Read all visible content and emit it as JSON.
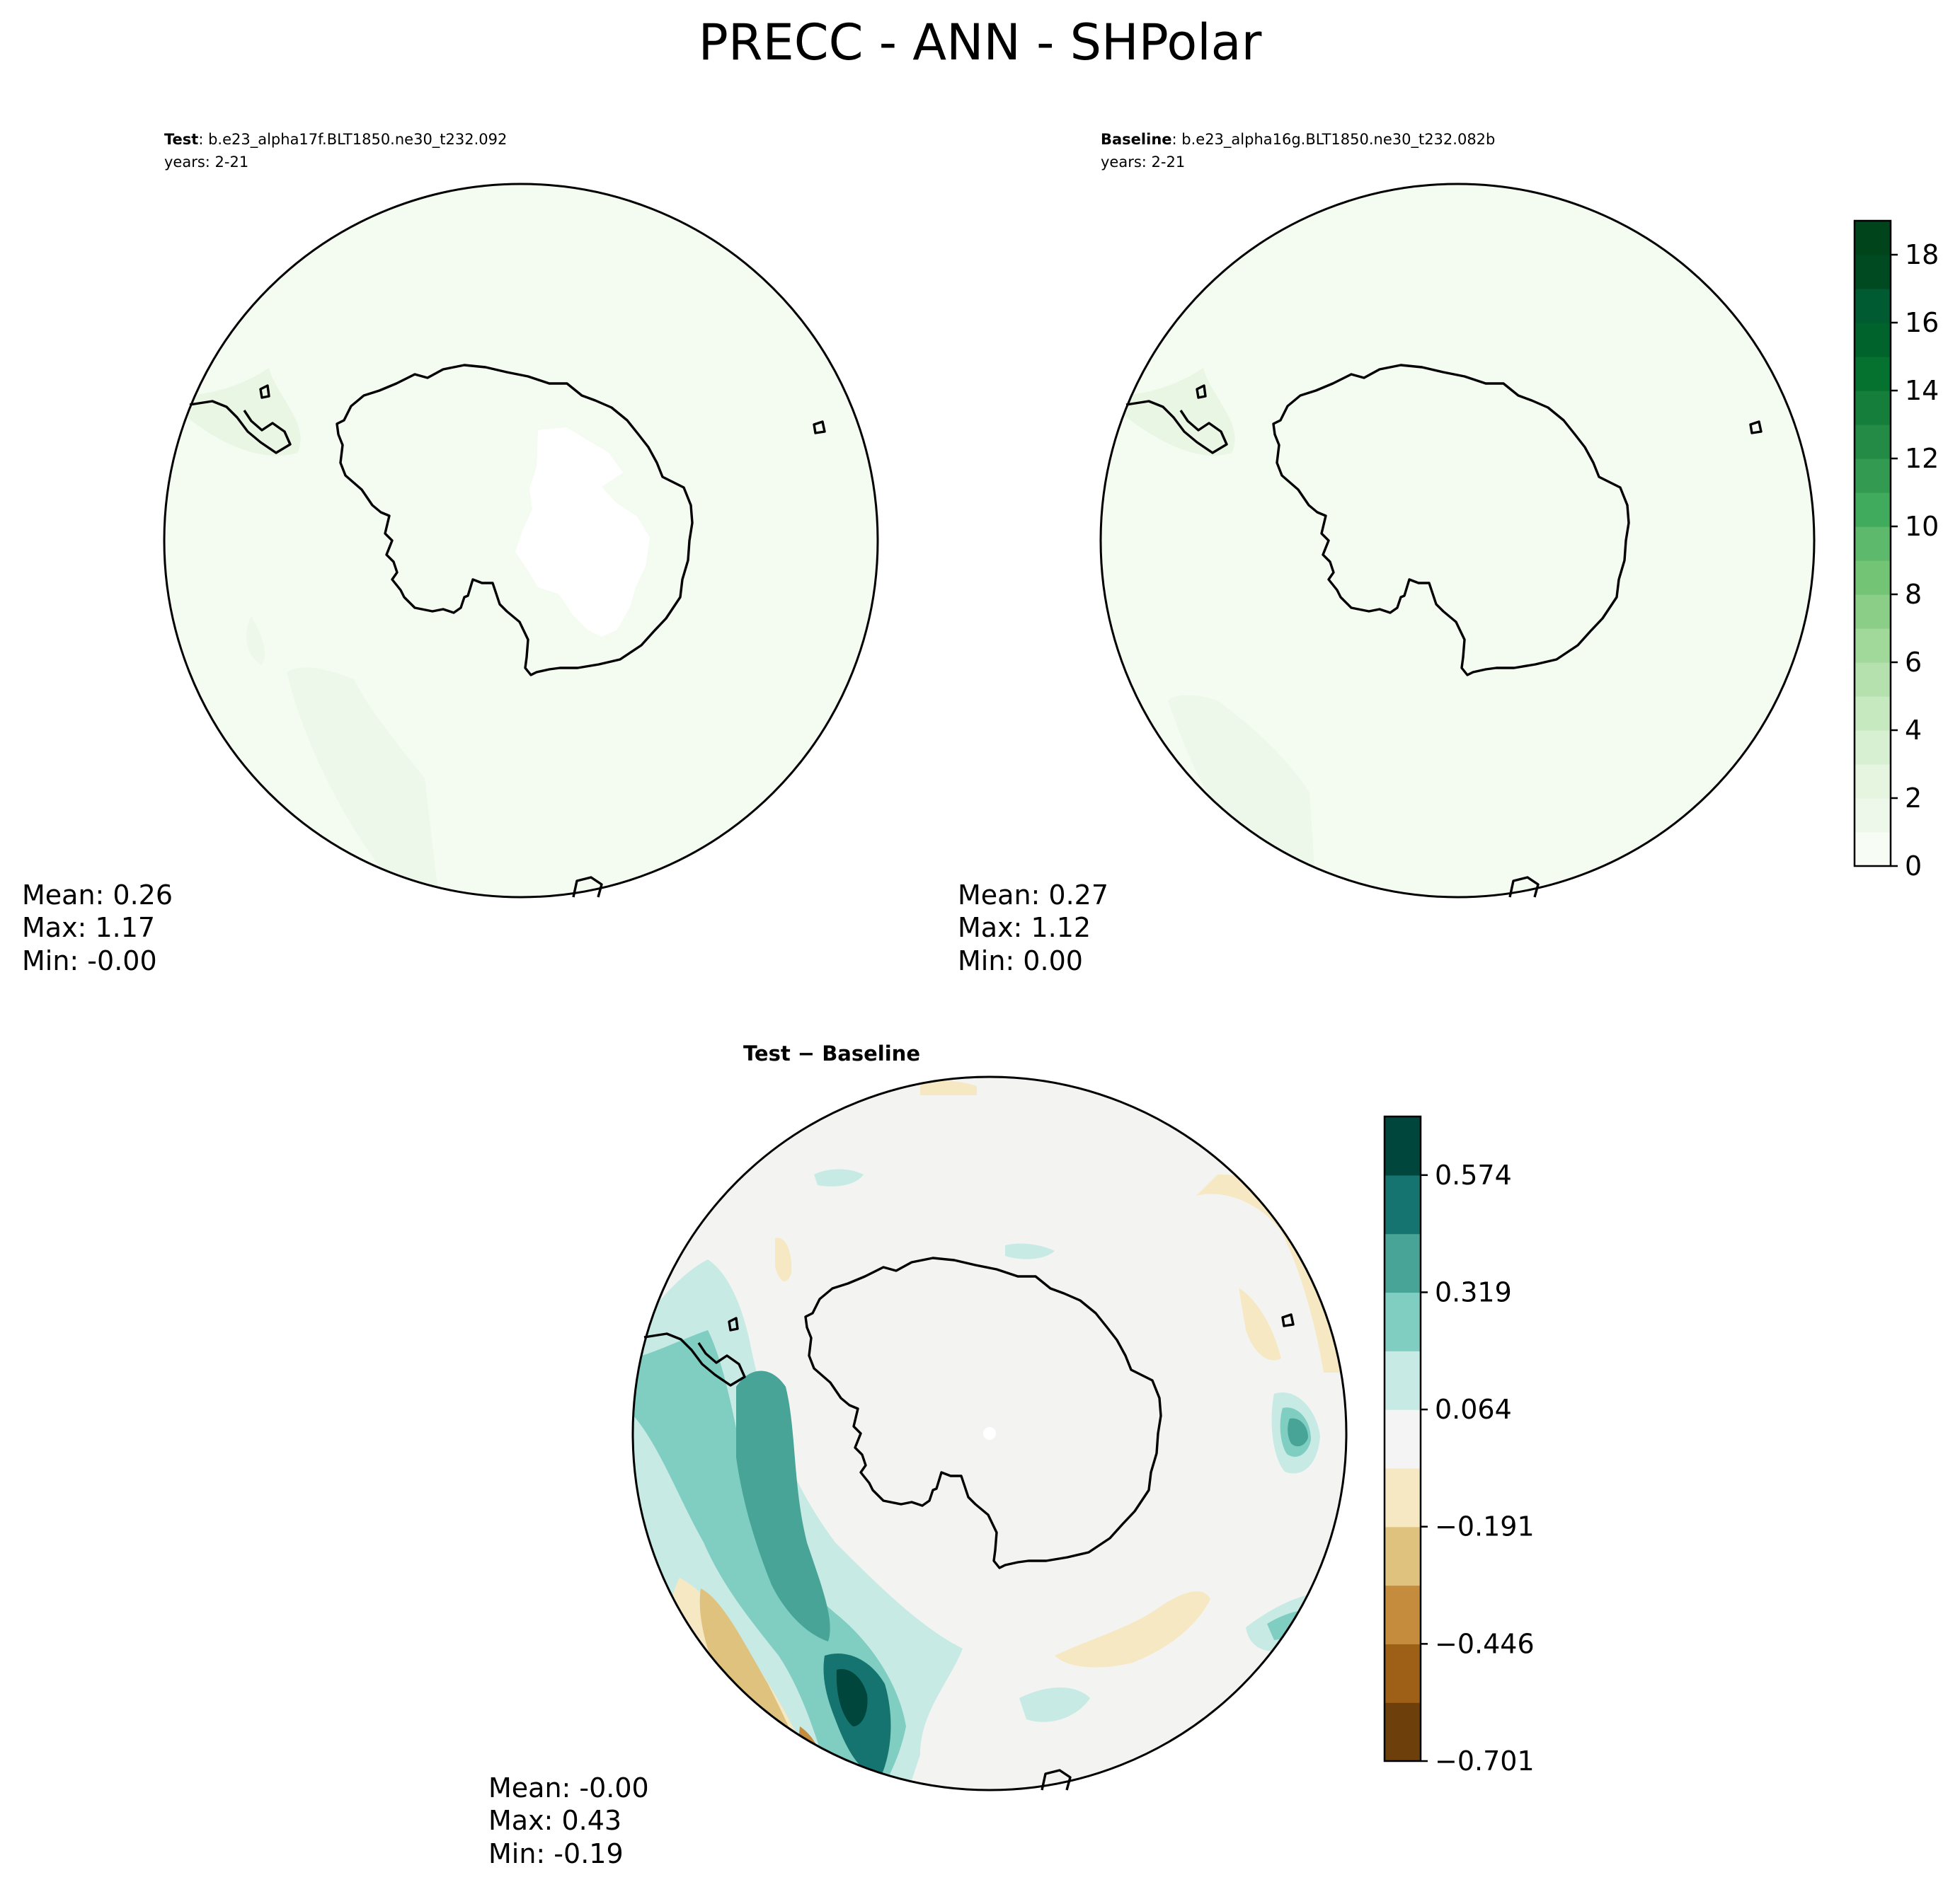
{
  "chart_data": {
    "title": "PRECC - ANN - SHPolar",
    "panels": [
      {
        "id": "test",
        "type": "heatmap",
        "projection": "south polar stereographic",
        "label_bold": "Test",
        "label_text": ": b.e23_alpha17f.BLT1850.ne30_t232.092",
        "years": "years: 2-21",
        "stats": {
          "mean": "Mean:  0.26",
          "max": "Max:  1.17",
          "min": "Min: -0.00"
        }
      },
      {
        "id": "baseline",
        "type": "heatmap",
        "projection": "south polar stereographic",
        "label_bold": "Baseline",
        "label_text": ": b.e23_alpha16g.BLT1850.ne30_t232.082b",
        "years": "years: 2-21",
        "stats": {
          "mean": "Mean:  0.27",
          "max": "Max:  1.12",
          "min": "Min:  0.00"
        }
      },
      {
        "id": "diff",
        "type": "heatmap",
        "projection": "south polar stereographic",
        "label_bold": "Test − Baseline",
        "stats": {
          "mean": "Mean: -0.00",
          "max": "Max:  0.43",
          "min": "Min: -0.19"
        }
      }
    ],
    "colorbar_main": {
      "range": [
        0,
        19
      ],
      "levels": 19,
      "ticks": [
        0,
        2,
        4,
        6,
        8,
        10,
        12,
        14,
        16,
        18
      ],
      "tick_labels": [
        "0",
        "2",
        "4",
        "6",
        "8",
        "10",
        "12",
        "14",
        "16",
        "18"
      ],
      "colors": [
        "#f7fcf5",
        "#eef8ea",
        "#e5f5e0",
        "#d8f0d2",
        "#c7e9c0",
        "#b4e1ad",
        "#a1d99b",
        "#8ace88",
        "#74c476",
        "#5db96b",
        "#41ab5d",
        "#329b51",
        "#238b45",
        "#147e3a",
        "#067230",
        "#00632b",
        "#005a32",
        "#004a22",
        "#00441b"
      ]
    },
    "colorbar_diff": {
      "range": [
        -0.701,
        0.701
      ],
      "tick_labels": [
        "−0.701",
        "−0.446",
        "−0.191",
        "0.064",
        "0.319",
        "0.574"
      ],
      "colors": [
        "#6d400b",
        "#9e5f17",
        "#c58c3e",
        "#dfc27d",
        "#f6e8c3",
        "#f4f4f4",
        "#c7eae5",
        "#80cdc1",
        "#47a497",
        "#157470",
        "#01463c"
      ]
    },
    "field_colors": {
      "light_green": "#eff8ea",
      "lighter_green": "#f4fbf1",
      "blank": "#ffffff",
      "neutral": "#f3f4f2"
    }
  }
}
